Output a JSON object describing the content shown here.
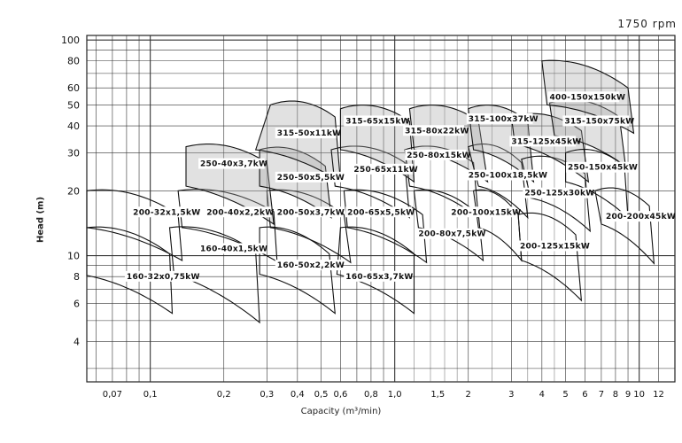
{
  "chart_data": {
    "type": "line",
    "title": "1750 rpm",
    "xlabel": "Capacity (m³/min)",
    "ylabel": "Head (m)",
    "xscale": "log",
    "yscale": "log",
    "xlim": [
      0.055,
      14
    ],
    "ylim": [
      2.6,
      105
    ],
    "grid": true,
    "yticks": [
      {
        "v": 4,
        "label": "4"
      },
      {
        "v": 6,
        "label": "6"
      },
      {
        "v": 8,
        "label": "8"
      },
      {
        "v": 10,
        "label": "10"
      },
      {
        "v": 20,
        "label": "20"
      },
      {
        "v": 30,
        "label": "30"
      },
      {
        "v": 40,
        "label": "40"
      },
      {
        "v": 50,
        "label": "50"
      },
      {
        "v": 60,
        "label": "60"
      },
      {
        "v": 80,
        "label": "80"
      },
      {
        "v": 100,
        "label": "100"
      }
    ],
    "xticks": [
      {
        "v": 0.07,
        "label": "0,07"
      },
      {
        "v": 0.1,
        "label": "0,1"
      },
      {
        "v": 0.2,
        "label": "0,2"
      },
      {
        "v": 0.3,
        "label": "0,3"
      },
      {
        "v": 0.4,
        "label": "0,4"
      },
      {
        "v": 0.5,
        "label": "0,5"
      },
      {
        "v": 0.6,
        "label": "0,6"
      },
      {
        "v": 0.8,
        "label": "0,8"
      },
      {
        "v": 1.0,
        "label": "1,0"
      },
      {
        "v": 1.5,
        "label": "1,5"
      },
      {
        "v": 2,
        "label": "2"
      },
      {
        "v": 3,
        "label": "3"
      },
      {
        "v": 4,
        "label": "4"
      },
      {
        "v": 5,
        "label": "5"
      },
      {
        "v": 6,
        "label": "6"
      },
      {
        "v": 7,
        "label": "7"
      },
      {
        "v": 8,
        "label": "8"
      },
      {
        "v": 9,
        "label": "9"
      },
      {
        "v": 10,
        "label": "10"
      },
      {
        "v": 12,
        "label": "12"
      }
    ],
    "pumps": [
      {
        "label": "160-32x0,75kW",
        "lx": 0.08,
        "ly": 7.8,
        "ulx": 0.055,
        "urx": 0.12,
        "uly": 13.5,
        "ury": 10.2,
        "llx": 0.055,
        "lrx": 0.123,
        "lly": 8.1,
        "lry": 5.4,
        "shade": false
      },
      {
        "label": "200-32x1,5kW",
        "lx": 0.085,
        "ly": 15.5,
        "ulx": 0.055,
        "urx": 0.13,
        "uly": 20,
        "ury": 15.5,
        "llx": 0.055,
        "lrx": 0.135,
        "lly": 13.5,
        "lry": 9.5,
        "shade": false
      },
      {
        "label": "160-40x1,5kW",
        "lx": 0.16,
        "ly": 10.5,
        "ulx": 0.12,
        "urx": 0.27,
        "uly": 13.5,
        "ury": 10.4,
        "llx": 0.125,
        "lrx": 0.28,
        "lly": 8.2,
        "lry": 4.9,
        "shade": false
      },
      {
        "label": "200-40x2,2kW",
        "lx": 0.17,
        "ly": 15.5,
        "ulx": 0.13,
        "urx": 0.32,
        "uly": 20,
        "ury": 16,
        "llx": 0.135,
        "lrx": 0.33,
        "lly": 13.5,
        "lry": 9.4,
        "shade": false
      },
      {
        "label": "160-50x2,2kW",
        "lx": 0.33,
        "ly": 8.8,
        "ulx": 0.28,
        "urx": 0.54,
        "uly": 13.5,
        "ury": 10.2,
        "llx": 0.28,
        "lrx": 0.57,
        "lly": 8.2,
        "lry": 5.4,
        "shade": false
      },
      {
        "label": "200-50x3,7kW",
        "lx": 0.33,
        "ly": 15.5,
        "ulx": 0.3,
        "urx": 0.62,
        "uly": 20,
        "ury": 15.5,
        "llx": 0.31,
        "lrx": 0.66,
        "lly": 13.5,
        "lry": 9.3,
        "shade": false
      },
      {
        "label": "250-40x3,7kW",
        "lx": 0.16,
        "ly": 26,
        "ulx": 0.14,
        "urx": 0.3,
        "uly": 32,
        "ury": 27,
        "llx": 0.14,
        "lrx": 0.32,
        "lly": 21,
        "lry": 14,
        "shade": true
      },
      {
        "label": "250-50x5,5kW",
        "lx": 0.33,
        "ly": 22.5,
        "ulx": 0.28,
        "urx": 0.52,
        "uly": 31,
        "ury": 26,
        "llx": 0.28,
        "lrx": 0.55,
        "lly": 21,
        "lry": 15,
        "shade": true
      },
      {
        "label": "315-50x11kW",
        "lx": 0.33,
        "ly": 36,
        "ulx": 0.31,
        "urx": 0.57,
        "uly": 50,
        "ury": 44,
        "llx": 0.27,
        "lrx": 0.6,
        "lly": 31,
        "lry": 22,
        "shade": true
      },
      {
        "label": "160-65x3,7kW",
        "lx": 0.63,
        "ly": 7.8,
        "ulx": 0.6,
        "urx": 1.2,
        "uly": 13.5,
        "ury": 10.2,
        "llx": 0.58,
        "lrx": 1.2,
        "lly": 8.2,
        "lry": 5.4,
        "shade": false
      },
      {
        "label": "200-65x5,5kW",
        "lx": 0.64,
        "ly": 15.5,
        "ulx": 0.62,
        "urx": 1.3,
        "uly": 20,
        "ury": 15.5,
        "llx": 0.64,
        "lrx": 1.35,
        "lly": 13.5,
        "lry": 9.3,
        "shade": false
      },
      {
        "label": "250-65x11kW",
        "lx": 0.68,
        "ly": 24.5,
        "ulx": 0.55,
        "urx": 1.1,
        "uly": 31,
        "ury": 27,
        "llx": 0.57,
        "lrx": 1.15,
        "lly": 21,
        "lry": 15,
        "shade": false
      },
      {
        "label": "315-65x15kW",
        "lx": 0.63,
        "ly": 41,
        "ulx": 0.6,
        "urx": 1.15,
        "uly": 48,
        "ury": 42,
        "llx": 0.6,
        "lrx": 1.2,
        "lly": 31,
        "lry": 22,
        "shade": true
      },
      {
        "label": "200-80x7,5kW",
        "lx": 1.25,
        "ly": 12.3,
        "ulx": 1.2,
        "urx": 2.2,
        "uly": 20,
        "ury": 15.5,
        "llx": 1.25,
        "lrx": 2.3,
        "lly": 13.5,
        "lry": 9.5,
        "shade": false
      },
      {
        "label": "250-80x15kW",
        "lx": 1.12,
        "ly": 28.5,
        "ulx": 1.1,
        "urx": 2.1,
        "uly": 31,
        "ury": 27,
        "llx": 1.15,
        "lrx": 2.2,
        "lly": 21,
        "lry": 15,
        "shade": false
      },
      {
        "label": "315-80x22kW",
        "lx": 1.1,
        "ly": 37,
        "ulx": 1.15,
        "urx": 2.2,
        "uly": 48,
        "ury": 42,
        "llx": 1.2,
        "lrx": 2.4,
        "lly": 31,
        "lry": 22,
        "shade": true
      },
      {
        "label": "200-100x15kW",
        "lx": 1.7,
        "ly": 15.5,
        "ulx": 2.1,
        "urx": 3.2,
        "uly": 20,
        "ury": 15.5,
        "llx": 2.2,
        "lrx": 3.3,
        "lly": 13.5,
        "lry": 9.5,
        "shade": false
      },
      {
        "label": "250-100x18,5kW",
        "lx": 2.0,
        "ly": 23,
        "ulx": 2.0,
        "urx": 3.3,
        "uly": 32,
        "ury": 27,
        "llx": 2.2,
        "lrx": 3.5,
        "lly": 21,
        "lry": 15,
        "shade": false
      },
      {
        "label": "315-100x37kW",
        "lx": 2.0,
        "ly": 42,
        "ulx": 2.0,
        "urx": 3.5,
        "uly": 48,
        "ury": 42,
        "llx": 2.1,
        "lrx": 3.7,
        "lly": 31,
        "lry": 22,
        "shade": true
      },
      {
        "label": "200-125x15kW",
        "lx": 3.25,
        "ly": 10.8,
        "ulx": 3.2,
        "urx": 5.5,
        "uly": 15.5,
        "ury": 12.5,
        "llx": 3.3,
        "lrx": 5.8,
        "lly": 9.5,
        "lry": 6.2,
        "shade": false
      },
      {
        "label": "250-125x30kW",
        "lx": 3.4,
        "ly": 19,
        "ulx": 3.3,
        "urx": 6.0,
        "uly": 28,
        "ury": 24,
        "llx": 3.6,
        "lrx": 6.3,
        "lly": 18.5,
        "lry": 13,
        "shade": false
      },
      {
        "label": "315-125x45kW",
        "lx": 3.0,
        "ly": 33,
        "ulx": 3.0,
        "urx": 5.8,
        "uly": 44,
        "ury": 38,
        "llx": 3.1,
        "lrx": 6.2,
        "lly": 33,
        "lry": 22,
        "shade": true
      },
      {
        "label": "250-150x45kW",
        "lx": 5.1,
        "ly": 25,
        "ulx": 5.0,
        "urx": 8.7,
        "uly": 30,
        "ury": 26,
        "llx": 5.0,
        "lrx": 9.0,
        "lly": 22,
        "lry": 15,
        "shade": false
      },
      {
        "label": "315-150x75kW",
        "lx": 4.95,
        "ly": 41,
        "ulx": 4.3,
        "urx": 8.3,
        "uly": 51,
        "ury": 44,
        "llx": 4.5,
        "lrx": 8.8,
        "lly": 36,
        "lry": 26,
        "shade": true
      },
      {
        "label": "400-150x150kW",
        "lx": 4.3,
        "ly": 53,
        "ulx": 4.0,
        "urx": 9.0,
        "uly": 80,
        "ury": 60,
        "llx": 4.2,
        "lrx": 9.5,
        "lly": 50,
        "lry": 37,
        "shade": true
      },
      {
        "label": "200-200x45kW",
        "lx": 7.3,
        "ly": 14.8,
        "ulx": 6.6,
        "urx": 11,
        "uly": 20,
        "ury": 17,
        "llx": 7.0,
        "lrx": 11.5,
        "lly": 14,
        "lry": 9.2,
        "shade": false
      }
    ]
  }
}
